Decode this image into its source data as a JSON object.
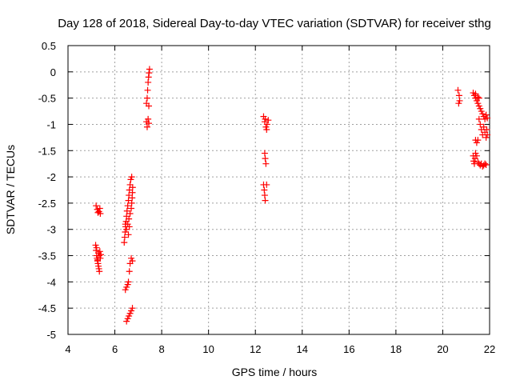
{
  "chart_data": {
    "type": "scatter",
    "title": "Day 128 of 2018, Sidereal Day-to-day VTEC variation (SDTVAR) for receiver sthg",
    "xlabel": "GPS time / hours",
    "ylabel": "SDTVAR / TECUs",
    "xlim": [
      4,
      22
    ],
    "ylim": [
      -5,
      0.5
    ],
    "xticks": [
      4,
      6,
      8,
      10,
      12,
      14,
      16,
      18,
      20,
      22
    ],
    "yticks": [
      -5,
      -4.5,
      -4,
      -3.5,
      -3,
      -2.5,
      -2,
      -1.5,
      -1,
      -0.5,
      0,
      0.5
    ],
    "xtick_labels": [
      "4",
      "6",
      "8",
      "10",
      "12",
      "14",
      "16",
      "18",
      "20",
      "22"
    ],
    "ytick_labels": [
      "-5",
      "-4.5",
      "-4",
      "-3.5",
      "-3",
      "-2.5",
      "-2",
      "-1.5",
      "-1",
      "-0.5",
      "0",
      "0.5"
    ],
    "grid": true,
    "marker": "plus",
    "marker_color": "#ff0000",
    "series": [
      {
        "points": [
          [
            5.2,
            -2.55
          ],
          [
            5.25,
            -2.62
          ],
          [
            5.28,
            -2.68
          ],
          [
            5.32,
            -2.66
          ],
          [
            5.36,
            -2.6
          ],
          [
            5.38,
            -2.7
          ],
          [
            5.18,
            -3.3
          ],
          [
            5.2,
            -3.4
          ],
          [
            5.22,
            -3.5
          ],
          [
            5.24,
            -3.55
          ],
          [
            5.26,
            -3.6
          ],
          [
            5.28,
            -3.65
          ],
          [
            5.3,
            -3.7
          ],
          [
            5.32,
            -3.75
          ],
          [
            5.34,
            -3.8
          ],
          [
            5.3,
            -3.45
          ],
          [
            5.33,
            -3.5
          ],
          [
            5.36,
            -3.42
          ],
          [
            5.38,
            -3.55
          ],
          [
            5.4,
            -3.48
          ],
          [
            5.22,
            -3.35
          ],
          [
            5.27,
            -3.58
          ],
          [
            6.4,
            -3.25
          ],
          [
            6.42,
            -3.15
          ],
          [
            6.44,
            -3.05
          ],
          [
            6.46,
            -2.95
          ],
          [
            6.48,
            -2.85
          ],
          [
            6.5,
            -2.75
          ],
          [
            6.52,
            -2.65
          ],
          [
            6.55,
            -2.55
          ],
          [
            6.58,
            -2.45
          ],
          [
            6.6,
            -2.35
          ],
          [
            6.62,
            -2.25
          ],
          [
            6.65,
            -2.15
          ],
          [
            6.68,
            -2.05
          ],
          [
            6.72,
            -2.0
          ],
          [
            6.5,
            -3.0
          ],
          [
            6.55,
            -2.9
          ],
          [
            6.6,
            -2.8
          ],
          [
            6.65,
            -2.7
          ],
          [
            6.7,
            -2.6
          ],
          [
            6.72,
            -2.5
          ],
          [
            6.74,
            -2.4
          ],
          [
            6.75,
            -2.3
          ],
          [
            6.76,
            -2.2
          ],
          [
            6.45,
            -2.9
          ],
          [
            6.58,
            -3.1
          ],
          [
            6.62,
            -2.95
          ],
          [
            6.45,
            -4.15
          ],
          [
            6.5,
            -4.1
          ],
          [
            6.55,
            -4.05
          ],
          [
            6.58,
            -4.0
          ],
          [
            6.62,
            -3.8
          ],
          [
            6.65,
            -3.65
          ],
          [
            6.7,
            -3.55
          ],
          [
            6.75,
            -3.6
          ],
          [
            6.5,
            -4.75
          ],
          [
            6.55,
            -4.7
          ],
          [
            6.6,
            -4.65
          ],
          [
            6.65,
            -4.6
          ],
          [
            6.7,
            -4.55
          ],
          [
            6.75,
            -4.5
          ],
          [
            7.35,
            -0.6
          ],
          [
            7.38,
            -0.5
          ],
          [
            7.4,
            -0.35
          ],
          [
            7.42,
            -0.2
          ],
          [
            7.44,
            -0.1
          ],
          [
            7.46,
            -0.02
          ],
          [
            7.48,
            0.05
          ],
          [
            7.45,
            -0.65
          ],
          [
            7.35,
            -0.95
          ],
          [
            7.38,
            -1.05
          ],
          [
            7.42,
            -0.9
          ],
          [
            7.45,
            -0.98
          ],
          [
            12.35,
            -0.85
          ],
          [
            12.4,
            -0.95
          ],
          [
            12.45,
            -1.05
          ],
          [
            12.5,
            -1.0
          ],
          [
            12.55,
            -0.92
          ],
          [
            12.42,
            -0.9
          ],
          [
            12.48,
            -1.1
          ],
          [
            12.4,
            -1.55
          ],
          [
            12.42,
            -1.65
          ],
          [
            12.45,
            -1.75
          ],
          [
            12.35,
            -2.15
          ],
          [
            12.38,
            -2.25
          ],
          [
            12.4,
            -2.35
          ],
          [
            12.42,
            -2.45
          ],
          [
            12.48,
            -2.15
          ],
          [
            20.65,
            -0.35
          ],
          [
            20.7,
            -0.45
          ],
          [
            20.72,
            -0.55
          ],
          [
            20.68,
            -0.6
          ],
          [
            21.3,
            -0.4
          ],
          [
            21.35,
            -0.45
          ],
          [
            21.4,
            -0.5
          ],
          [
            21.45,
            -0.55
          ],
          [
            21.5,
            -0.6
          ],
          [
            21.55,
            -0.65
          ],
          [
            21.6,
            -0.7
          ],
          [
            21.65,
            -0.75
          ],
          [
            21.7,
            -0.8
          ],
          [
            21.75,
            -0.85
          ],
          [
            21.8,
            -0.9
          ],
          [
            21.85,
            -0.82
          ],
          [
            21.9,
            -0.88
          ],
          [
            21.4,
            -0.42
          ],
          [
            21.5,
            -0.48
          ],
          [
            21.55,
            -0.5
          ],
          [
            21.55,
            -0.9
          ],
          [
            21.6,
            -1.0
          ],
          [
            21.65,
            -1.1
          ],
          [
            21.7,
            -1.2
          ],
          [
            21.75,
            -1.05
          ],
          [
            21.8,
            -1.15
          ],
          [
            21.85,
            -1.25
          ],
          [
            21.9,
            -1.2
          ],
          [
            21.88,
            -1.1
          ],
          [
            21.4,
            -1.3
          ],
          [
            21.45,
            -1.35
          ],
          [
            21.5,
            -1.3
          ],
          [
            21.3,
            -1.6
          ],
          [
            21.32,
            -1.7
          ],
          [
            21.35,
            -1.75
          ],
          [
            21.38,
            -1.65
          ],
          [
            21.4,
            -1.55
          ],
          [
            21.45,
            -1.6
          ],
          [
            21.5,
            -1.72
          ],
          [
            21.55,
            -1.75
          ],
          [
            21.6,
            -1.78
          ],
          [
            21.65,
            -1.75
          ],
          [
            21.7,
            -1.8
          ],
          [
            21.75,
            -1.78
          ],
          [
            21.8,
            -1.75
          ],
          [
            21.85,
            -1.77
          ]
        ]
      }
    ]
  }
}
